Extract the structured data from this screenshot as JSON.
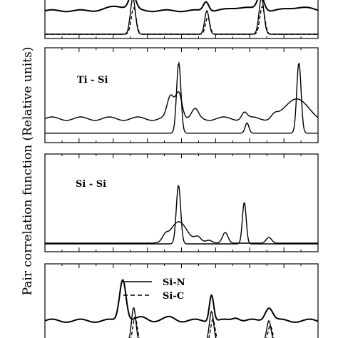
{
  "chart_data": {
    "type": "line",
    "ylabel": "Pair correlation function (Relative units)",
    "xlabel": "",
    "panels": [
      {
        "label": "",
        "series": [
          {
            "name": "",
            "style": "solid",
            "baseline": 0.55,
            "peaks": [
              [
                0.32,
                0.35,
                0.012
              ],
              [
                0.27,
                0.1,
                0.04
              ],
              [
                0.59,
                0.22,
                0.01
              ],
              [
                0.79,
                0.35,
                0.012
              ],
              [
                0.72,
                0.08,
                0.04
              ],
              [
                0.93,
                0.08,
                0.04
              ]
            ]
          },
          {
            "name": "",
            "style": "solid",
            "baseline": 0.0,
            "peaks": [
              [
                0.322,
                0.85,
                0.009
              ],
              [
                0.593,
                0.55,
                0.008
              ],
              [
                0.793,
                0.85,
                0.009
              ]
            ]
          },
          {
            "name": "",
            "style": "dashed",
            "baseline": 0.0,
            "peaks": [
              [
                0.325,
                0.62,
                0.009
              ],
              [
                0.596,
                0.4,
                0.008
              ],
              [
                0.796,
                0.65,
                0.009
              ]
            ]
          }
        ]
      },
      {
        "label": "Ti - Si",
        "series": [
          {
            "name": "",
            "style": "solid",
            "baseline": 0.06,
            "peaks": [
              [
                0.49,
                0.82,
                0.008
              ],
              [
                0.93,
                0.82,
                0.008
              ],
              [
                0.74,
                0.12,
                0.007
              ]
            ]
          },
          {
            "name": "",
            "style": "solid",
            "baseline": 0.23,
            "peaks": [
              [
                0.46,
                0.25,
                0.012
              ],
              [
                0.49,
                0.32,
                0.012
              ],
              [
                0.55,
                0.1,
                0.012
              ],
              [
                0.73,
                0.08,
                0.01
              ],
              [
                0.84,
                0.05,
                0.012
              ],
              [
                0.92,
                0.25,
                0.035
              ]
            ]
          }
        ]
      },
      {
        "label": "Si - Si",
        "series": [
          {
            "name": "",
            "style": "solid",
            "baseline": 0.05,
            "peaks": [
              [
                0.489,
                0.82,
                0.008
              ],
              [
                0.73,
                0.58,
                0.007
              ]
            ]
          },
          {
            "name": "",
            "style": "solid",
            "baseline": 0.06,
            "peaks": [
              [
                0.49,
                0.3,
                0.03
              ],
              [
                0.44,
                0.07,
                0.01
              ],
              [
                0.56,
                0.08,
                0.012
              ],
              [
                0.66,
                0.15,
                0.01
              ],
              [
                0.82,
                0.08,
                0.01
              ],
              [
                0.6,
                0.04,
                0.012
              ]
            ]
          }
        ]
      },
      {
        "label": "",
        "series": [
          {
            "name": "Si-N",
            "style": "solid",
            "baseline": 0.28,
            "peaks": [
              [
                0.285,
                0.55,
                0.012
              ],
              [
                0.61,
                0.35,
                0.008
              ],
              [
                0.82,
                0.18,
                0.014
              ],
              [
                0.7,
                0.05,
                0.014
              ],
              [
                0.46,
                0.04,
                0.02
              ],
              [
                0.36,
                0.04,
                0.02
              ]
            ]
          },
          {
            "name": "",
            "style": "solid",
            "baseline": 0.0,
            "peaks": [
              [
                0.325,
                0.45,
                0.008
              ],
              [
                0.61,
                0.4,
                0.008
              ],
              [
                0.82,
                0.28,
                0.008
              ]
            ]
          },
          {
            "name": "Si-C",
            "style": "dashed",
            "baseline": 0.0,
            "peaks": [
              [
                0.33,
                0.33,
                0.008
              ],
              [
                0.615,
                0.3,
                0.008
              ],
              [
                0.825,
                0.22,
                0.008
              ]
            ]
          }
        ]
      }
    ],
    "legend": [
      {
        "label": "Si-N",
        "style": "solid"
      },
      {
        "label": "Si-C",
        "style": "dashed"
      }
    ],
    "legend_position": "bottom panel, upper-center",
    "grid": false
  }
}
